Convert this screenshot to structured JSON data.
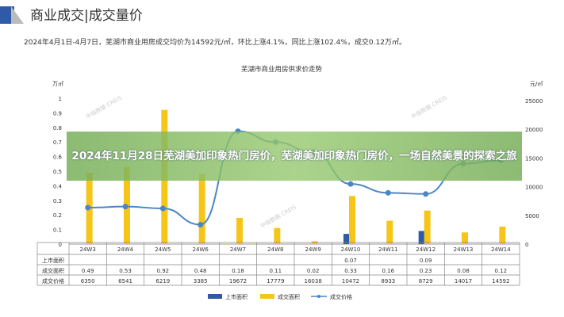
{
  "header": {
    "title": "商业成交|成交量价",
    "summary": "2024年4月1日-4月7日，芜湖市商业用房成交均价为14592元/㎡，环比上涨4.1%，同比上涨102.4%，成交0.12万㎡。"
  },
  "watermark": "中指数据 CREIS",
  "banner": {
    "text": "2024年11月28日芜湖美加印象热门房价，芜湖美加印象热门房价，一场自然美景的探索之旅"
  },
  "chart_data": {
    "type": "bar",
    "title": "芜湖市商业用房供求价走势",
    "ylabel_left": "万㎡",
    "ylabel_right": "元/㎡",
    "ylim_left": [
      0,
      1
    ],
    "ylim_right": [
      0,
      25000
    ],
    "yticks_left": [
      "0",
      "0.1",
      "0.2",
      "0.3",
      "0.4",
      "0.5",
      "0.6",
      "0.7",
      "0.8",
      "0.9",
      "1"
    ],
    "yticks_right": [
      "0",
      "5000",
      "10000",
      "15000",
      "20000",
      "25000"
    ],
    "categories": [
      "24W3",
      "24W4",
      "24W5",
      "24W6",
      "24W7",
      "24W8",
      "24W9",
      "24W10",
      "24W11",
      "24W12",
      "24W13",
      "24W14"
    ],
    "series": [
      {
        "name": "上市面积",
        "type": "bar",
        "color": "#2e5aa8",
        "values": [
          null,
          null,
          null,
          null,
          null,
          null,
          null,
          0.07,
          null,
          0.09,
          null,
          null
        ],
        "labels": [
          "",
          "",
          "",
          "",
          "",
          "",
          "",
          "0.07",
          "",
          "0.09",
          "",
          ""
        ]
      },
      {
        "name": "成交面积",
        "type": "bar",
        "color": "#f5c518",
        "values": [
          0.49,
          0.53,
          0.92,
          0.48,
          0.18,
          0.11,
          0.02,
          0.33,
          0.16,
          0.23,
          0.08,
          0.12
        ],
        "labels": [
          "0.49",
          "0.53",
          "0.92",
          "0.48",
          "0.18",
          "0.11",
          "0.02",
          "0.33",
          "0.16",
          "0.23",
          "0.08",
          "0.12"
        ]
      },
      {
        "name": "成交价格",
        "type": "line",
        "color": "#4a86c5",
        "values": [
          6350,
          6541,
          6219,
          3385,
          19672,
          17779,
          16038,
          10472,
          8933,
          8729,
          14017,
          14592
        ],
        "labels": [
          "6350",
          "6541",
          "6219",
          "3385",
          "19672",
          "17779",
          "16038",
          "10472",
          "8933",
          "8729",
          "14017",
          "14592"
        ]
      }
    ],
    "legend": "bottom"
  }
}
